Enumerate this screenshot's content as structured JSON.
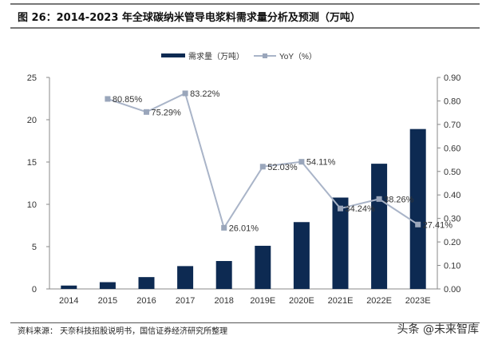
{
  "title": "图 26：2014-2023 年全球碳纳米管导电浆料需求量分析及预测（万吨）",
  "source": "资料来源： 天奈科技招股说明书，国信证券经济研究所整理",
  "watermark": "头条 @未来智库",
  "chart_data": {
    "type": "bar+line",
    "categories": [
      "2014",
      "2015",
      "2016",
      "2017",
      "2018",
      "2019E",
      "2020E",
      "2021E",
      "2022E",
      "2023E"
    ],
    "series": [
      {
        "name": "需求量（万吨）",
        "type": "bar",
        "axis": "left",
        "color": "#0d2a52",
        "values": [
          0.4,
          0.8,
          1.4,
          2.7,
          3.3,
          5.1,
          7.9,
          10.8,
          14.8,
          18.9
        ]
      },
      {
        "name": "YoY（%）",
        "type": "line",
        "axis": "right",
        "color": "#a9b4c8",
        "values": [
          null,
          0.8085,
          0.7529,
          0.8322,
          0.2601,
          0.5203,
          0.5411,
          0.3424,
          0.3826,
          0.2741
        ],
        "labels": [
          null,
          "80.85%",
          "75.29%",
          "83.22%",
          "26.01%",
          "52.03%",
          "54.11%",
          "34.24%",
          "38.26%",
          "27.41%"
        ]
      }
    ],
    "y_left": {
      "range": [
        0,
        25
      ],
      "ticks": [
        "0",
        "5",
        "10",
        "15",
        "20",
        "25"
      ]
    },
    "y_right": {
      "range": [
        0,
        0.9
      ],
      "ticks": [
        "0.00",
        "0.10",
        "0.20",
        "0.30",
        "0.40",
        "0.50",
        "0.60",
        "0.70",
        "0.80",
        "0.90"
      ]
    },
    "legend": "top-center",
    "grid": false
  }
}
